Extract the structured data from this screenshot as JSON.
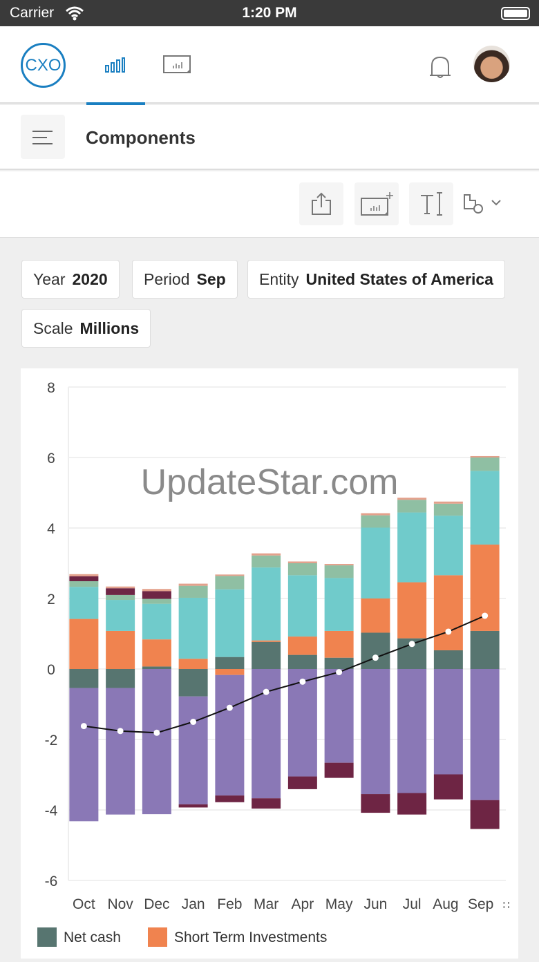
{
  "status_bar": {
    "carrier": "Carrier",
    "time": "1:20 PM"
  },
  "nav": {
    "logo": "CXO",
    "active_tab": "charts"
  },
  "titlebar": {
    "title": "Components"
  },
  "filters": [
    {
      "label": "Year",
      "value": "2020"
    },
    {
      "label": "Period",
      "value": "Sep"
    },
    {
      "label": "Entity",
      "value": "United States of America"
    },
    {
      "label": "Scale",
      "value": "Millions"
    }
  ],
  "watermark": "UpdateStar.com",
  "colors": {
    "accent": "#1a7fc1"
  },
  "chart_data": {
    "type": "bar",
    "stacked": true,
    "categories": [
      "Oct",
      "Nov",
      "Dec",
      "Jan",
      "Feb",
      "Mar",
      "Apr",
      "May",
      "Jun",
      "Jul",
      "Aug",
      "Sep"
    ],
    "ylim": [
      -6,
      8
    ],
    "yticks": [
      -6,
      -4,
      -2,
      0,
      2,
      4,
      6,
      8
    ],
    "grid": true,
    "legend_position": "bottom-left",
    "series": [
      {
        "id": "net_cash",
        "name": "Net cash",
        "color": "#577570",
        "legend": true,
        "values": [
          -0.54,
          -0.54,
          0.07,
          -0.78,
          0.34,
          0.77,
          0.4,
          0.32,
          1.03,
          0.87,
          0.53,
          1.08
        ]
      },
      {
        "id": "sti",
        "name": "Short Term Investments",
        "color": "#f0834f",
        "legend": true,
        "values": [
          1.42,
          1.08,
          0.77,
          0.29,
          -0.17,
          0.04,
          0.52,
          0.76,
          0.97,
          1.59,
          2.13,
          2.45
        ]
      },
      {
        "id": "s3",
        "color": "#8a78b6",
        "legend": false,
        "values": [
          -3.78,
          -3.59,
          -4.12,
          -3.06,
          -3.42,
          -3.67,
          -3.05,
          -2.66,
          -3.55,
          -3.52,
          -2.99,
          -3.72
        ]
      },
      {
        "id": "s4",
        "color": "#70cbcb",
        "legend": false,
        "values": [
          0.91,
          0.88,
          1.01,
          1.73,
          1.92,
          2.07,
          1.74,
          1.5,
          2.01,
          1.98,
          1.69,
          2.09
        ]
      },
      {
        "id": "s5",
        "color": "#8fbfa3",
        "legend": false,
        "values": [
          0.16,
          0.14,
          0.14,
          0.34,
          0.38,
          0.34,
          0.34,
          0.36,
          0.35,
          0.36,
          0.34,
          0.38
        ]
      },
      {
        "id": "s6",
        "color": "#6e2544",
        "legend": false,
        "values": [
          0.14,
          0.19,
          0.22,
          -0.09,
          -0.19,
          -0.29,
          -0.36,
          -0.43,
          -0.53,
          -0.61,
          -0.71,
          -0.82
        ]
      },
      {
        "id": "s7",
        "color": "#e3a18c",
        "legend": false,
        "values": [
          0.06,
          0.05,
          0.06,
          0.06,
          0.04,
          0.06,
          0.05,
          0.04,
          0.06,
          0.06,
          0.06,
          0.04
        ]
      }
    ],
    "line": {
      "id": "total",
      "color": "#111111",
      "values": [
        -1.62,
        -1.76,
        -1.81,
        -1.5,
        -1.1,
        -0.65,
        -0.36,
        -0.09,
        0.32,
        0.71,
        1.06,
        1.51
      ]
    }
  }
}
